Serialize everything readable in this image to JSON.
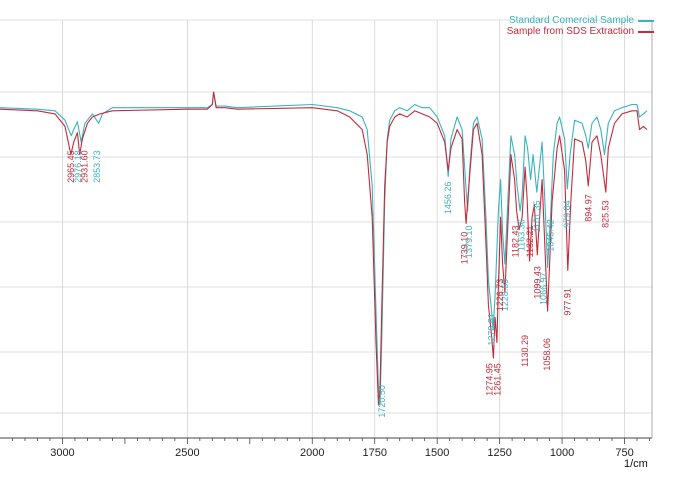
{
  "chart_data": {
    "type": "line",
    "xlabel": "1/cm",
    "ylabel": "",
    "xlim": [
      3250,
      640
    ],
    "ylim": [
      0,
      100
    ],
    "x_ticks": [
      3000,
      2500,
      2000,
      1750,
      1500,
      1250,
      1000,
      750
    ],
    "grid": true,
    "legend_position": "top-right",
    "series": [
      {
        "name": "Standard Comercial Sample",
        "color": "#3ab3bd",
        "points": [
          [
            3250,
            95
          ],
          [
            3100,
            94.5
          ],
          [
            3030,
            94
          ],
          [
            2990,
            91
          ],
          [
            2965,
            86
          ],
          [
            2955,
            88
          ],
          [
            2940,
            90.5
          ],
          [
            2925,
            84
          ],
          [
            2910,
            90
          ],
          [
            2880,
            93
          ],
          [
            2855,
            90
          ],
          [
            2840,
            93
          ],
          [
            2800,
            95
          ],
          [
            2500,
            95
          ],
          [
            2420,
            95
          ],
          [
            2400,
            96
          ],
          [
            2395,
            100
          ],
          [
            2385,
            95.5
          ],
          [
            2350,
            95.5
          ],
          [
            2300,
            95
          ],
          [
            2000,
            96
          ],
          [
            1900,
            95
          ],
          [
            1850,
            94
          ],
          [
            1800,
            92
          ],
          [
            1780,
            88
          ],
          [
            1760,
            70
          ],
          [
            1745,
            30
          ],
          [
            1735,
            5
          ],
          [
            1729,
            0
          ],
          [
            1722,
            20
          ],
          [
            1710,
            65
          ],
          [
            1700,
            85
          ],
          [
            1690,
            91
          ],
          [
            1670,
            94
          ],
          [
            1650,
            95
          ],
          [
            1620,
            94
          ],
          [
            1590,
            96
          ],
          [
            1560,
            95
          ],
          [
            1530,
            95
          ],
          [
            1500,
            92
          ],
          [
            1470,
            86
          ],
          [
            1456,
            73
          ],
          [
            1445,
            85
          ],
          [
            1420,
            92
          ],
          [
            1400,
            88
          ],
          [
            1385,
            70
          ],
          [
            1378,
            62
          ],
          [
            1370,
            75
          ],
          [
            1355,
            90
          ],
          [
            1340,
            92
          ],
          [
            1320,
            85
          ],
          [
            1305,
            60
          ],
          [
            1295,
            40
          ],
          [
            1282,
            30
          ],
          [
            1276,
            24
          ],
          [
            1268,
            35
          ],
          [
            1255,
            62
          ],
          [
            1246,
            72
          ],
          [
            1238,
            55
          ],
          [
            1229,
            45
          ],
          [
            1220,
            60
          ],
          [
            1205,
            86
          ],
          [
            1190,
            80
          ],
          [
            1180,
            70
          ],
          [
            1168,
            62
          ],
          [
            1160,
            67
          ],
          [
            1148,
            86
          ],
          [
            1138,
            82
          ],
          [
            1126,
            72
          ],
          [
            1116,
            80
          ],
          [
            1101,
            68
          ],
          [
            1092,
            75
          ],
          [
            1080,
            84
          ],
          [
            1066,
            60
          ],
          [
            1058,
            44
          ],
          [
            1050,
            55
          ],
          [
            1045,
            62
          ],
          [
            1035,
            80
          ],
          [
            1020,
            90
          ],
          [
            1010,
            92
          ],
          [
            990,
            85
          ],
          [
            979,
            69
          ],
          [
            968,
            80
          ],
          [
            950,
            91
          ],
          [
            920,
            90
          ],
          [
            905,
            86
          ],
          [
            895,
            82
          ],
          [
            880,
            90
          ],
          [
            860,
            92
          ],
          [
            845,
            88
          ],
          [
            830,
            80
          ],
          [
            815,
            90
          ],
          [
            790,
            94
          ],
          [
            760,
            95
          ],
          [
            720,
            96
          ],
          [
            700,
            96
          ],
          [
            690,
            92
          ],
          [
            675,
            93
          ],
          [
            660,
            94
          ]
        ]
      },
      {
        "name": "Sample from SDS Extraction",
        "color": "#c42a3a",
        "points": [
          [
            3250,
            94.5
          ],
          [
            3100,
            94
          ],
          [
            3030,
            93
          ],
          [
            2990,
            89
          ],
          [
            2966,
            80
          ],
          [
            2955,
            84
          ],
          [
            2940,
            87
          ],
          [
            2931,
            80
          ],
          [
            2920,
            85
          ],
          [
            2900,
            90
          ],
          [
            2880,
            92
          ],
          [
            2850,
            93
          ],
          [
            2800,
            94
          ],
          [
            2500,
            94.5
          ],
          [
            2420,
            94.5
          ],
          [
            2400,
            96
          ],
          [
            2395,
            100
          ],
          [
            2385,
            95
          ],
          [
            2350,
            95
          ],
          [
            2300,
            94.5
          ],
          [
            2000,
            95
          ],
          [
            1900,
            94
          ],
          [
            1850,
            92
          ],
          [
            1800,
            88
          ],
          [
            1780,
            80
          ],
          [
            1760,
            60
          ],
          [
            1745,
            20
          ],
          [
            1735,
            0
          ],
          [
            1729,
            5
          ],
          [
            1722,
            30
          ],
          [
            1710,
            70
          ],
          [
            1700,
            84
          ],
          [
            1690,
            89
          ],
          [
            1670,
            92
          ],
          [
            1650,
            93
          ],
          [
            1620,
            92
          ],
          [
            1590,
            94
          ],
          [
            1560,
            93
          ],
          [
            1530,
            92
          ],
          [
            1500,
            90
          ],
          [
            1470,
            84
          ],
          [
            1456,
            75
          ],
          [
            1445,
            82
          ],
          [
            1420,
            88
          ],
          [
            1400,
            85
          ],
          [
            1390,
            65
          ],
          [
            1384,
            58
          ],
          [
            1370,
            73
          ],
          [
            1355,
            88
          ],
          [
            1340,
            90
          ],
          [
            1320,
            80
          ],
          [
            1305,
            52
          ],
          [
            1295,
            32
          ],
          [
            1282,
            22
          ],
          [
            1275,
            15
          ],
          [
            1268,
            28
          ],
          [
            1261,
            20
          ],
          [
            1255,
            38
          ],
          [
            1246,
            60
          ],
          [
            1238,
            45
          ],
          [
            1229,
            36
          ],
          [
            1220,
            52
          ],
          [
            1205,
            80
          ],
          [
            1190,
            72
          ],
          [
            1182,
            62
          ],
          [
            1172,
            56
          ],
          [
            1160,
            60
          ],
          [
            1148,
            76
          ],
          [
            1140,
            66
          ],
          [
            1130,
            46
          ],
          [
            1120,
            60
          ],
          [
            1111,
            64
          ],
          [
            1099,
            48
          ],
          [
            1090,
            60
          ],
          [
            1080,
            72
          ],
          [
            1066,
            45
          ],
          [
            1058,
            30
          ],
          [
            1050,
            45
          ],
          [
            1040,
            65
          ],
          [
            1020,
            82
          ],
          [
            1010,
            86
          ],
          [
            990,
            75
          ],
          [
            977,
            43
          ],
          [
            965,
            65
          ],
          [
            950,
            85
          ],
          [
            920,
            84
          ],
          [
            905,
            78
          ],
          [
            895,
            70
          ],
          [
            880,
            84
          ],
          [
            860,
            86
          ],
          [
            845,
            80
          ],
          [
            825,
            68
          ],
          [
            815,
            82
          ],
          [
            790,
            90
          ],
          [
            760,
            93
          ],
          [
            720,
            94
          ],
          [
            700,
            94
          ],
          [
            690,
            88
          ],
          [
            675,
            89
          ],
          [
            660,
            88
          ]
        ]
      }
    ],
    "annotations": [
      {
        "text": "2965.45",
        "x": 2965.45,
        "color": "#c42a3a",
        "y": 82
      },
      {
        "text": "2976.18",
        "x": 2938,
        "color": "#3ab3bd",
        "y": 82
      },
      {
        "text": "2931.60",
        "x": 2912,
        "color": "#c42a3a",
        "y": 82
      },
      {
        "text": "2853.73",
        "x": 2862,
        "color": "#3ab3bd",
        "y": 82
      },
      {
        "text": "1456.26",
        "x": 1456.26,
        "color": "#3ab3bd",
        "y": 72
      },
      {
        "text": "1739.10",
        "x": 1390,
        "color": "#c42a3a",
        "y": 56
      },
      {
        "text": "1379.10",
        "x": 1372,
        "color": "#3ab3bd",
        "y": 58
      },
      {
        "text": "1278.81",
        "x": 1282,
        "color": "#3ab3bd",
        "y": 30
      },
      {
        "text": "1228.59",
        "x": 1229,
        "color": "#3ab3bd",
        "y": 41
      },
      {
        "text": "1226.73",
        "x": 1248,
        "color": "#c42a3a",
        "y": 41
      },
      {
        "text": "1182.43",
        "x": 1186,
        "color": "#c42a3a",
        "y": 58
      },
      {
        "text": "1163.36",
        "x": 1162,
        "color": "#3ab3bd",
        "y": 60
      },
      {
        "text": "1132.21",
        "x": 1128,
        "color": "#c42a3a",
        "y": 58
      },
      {
        "text": "1101.35",
        "x": 1101.35,
        "color": "#3ab3bd",
        "y": 66
      },
      {
        "text": "1099.43",
        "x": 1099,
        "color": "#c42a3a",
        "y": 45
      },
      {
        "text": "1130.29",
        "x": 1148,
        "color": "#c42a3a",
        "y": 23
      },
      {
        "text": "1066.97",
        "x": 1074,
        "color": "#3ab3bd",
        "y": 43
      },
      {
        "text": "1045.42",
        "x": 1045.42,
        "color": "#3ab3bd",
        "y": 60
      },
      {
        "text": "1058.06",
        "x": 1060,
        "color": "#c42a3a",
        "y": 22
      },
      {
        "text": "979.84",
        "x": 980,
        "color": "#3ab3bd",
        "y": 66
      },
      {
        "text": "977.91",
        "x": 977.91,
        "color": "#c42a3a",
        "y": 38
      },
      {
        "text": "1274.95",
        "x": 1290,
        "color": "#c42a3a",
        "y": 14
      },
      {
        "text": "1261.45",
        "x": 1258,
        "color": "#c42a3a",
        "y": 14
      },
      {
        "text": "1720.50",
        "x": 1720.5,
        "color": "#3ab3bd",
        "y": 7
      },
      {
        "text": "894.97",
        "x": 894.97,
        "color": "#c42a3a",
        "y": 68
      },
      {
        "text": "825.53",
        "x": 825.53,
        "color": "#c42a3a",
        "y": 66
      }
    ]
  }
}
